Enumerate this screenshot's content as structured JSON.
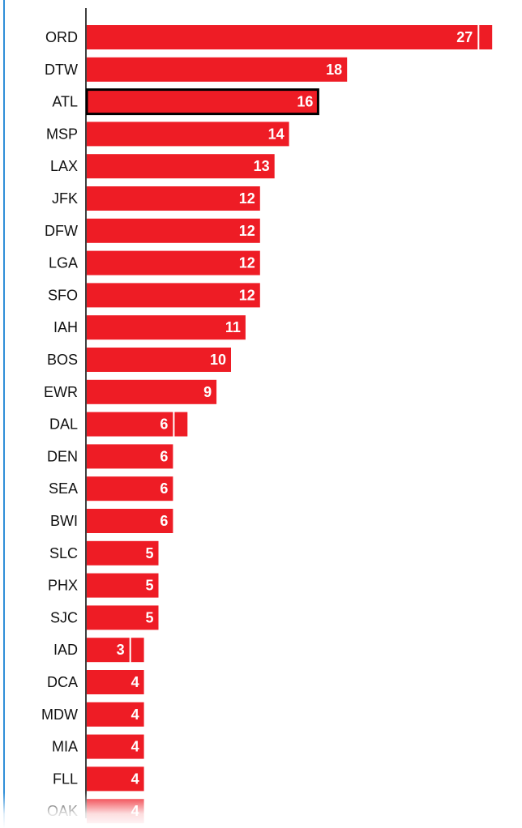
{
  "chart_data": {
    "type": "bar",
    "orientation": "horizontal",
    "categories": [
      "ORD",
      "DTW",
      "ATL",
      "MSP",
      "LAX",
      "JFK",
      "DFW",
      "LGA",
      "SFO",
      "IAH",
      "BOS",
      "EWR",
      "DAL",
      "DEN",
      "SEA",
      "BWI",
      "SLC",
      "PHX",
      "SJC",
      "IAD",
      "DCA",
      "MDW",
      "MIA",
      "FLL",
      "OAK"
    ],
    "values": [
      27,
      18,
      16,
      14,
      13,
      12,
      12,
      12,
      12,
      11,
      10,
      9,
      6,
      6,
      6,
      6,
      5,
      5,
      5,
      3,
      4,
      4,
      4,
      4,
      4
    ],
    "value_labels": [
      "27",
      "18",
      "16",
      "14",
      "13",
      "12",
      "12",
      "12",
      "12",
      "11",
      "10",
      "9",
      "6",
      "6",
      "6",
      "6",
      "5",
      "5",
      "5",
      "3",
      "4",
      "4",
      "4",
      "4",
      "4"
    ],
    "extensions": [
      {
        "category": "ORD",
        "value": 28
      },
      {
        "category": "DAL",
        "value": 7
      },
      {
        "category": "IAD",
        "value": 4
      }
    ],
    "highlighted": "ATL",
    "title": "",
    "xlabel": "",
    "ylabel": "",
    "xlim": [
      0,
      28
    ],
    "grid": false,
    "legend": "none",
    "colors": {
      "bar": "#ee1c25",
      "highlight_outline": "#000000",
      "value_text": "#ffffff",
      "category_text": "#111111",
      "axis": "#000000",
      "left_rule": "#2f8fd8"
    }
  }
}
